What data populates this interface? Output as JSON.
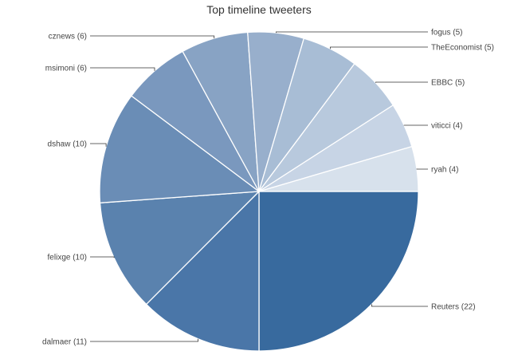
{
  "chart_data": {
    "type": "pie",
    "title": "Top timeline tweeters",
    "slices": [
      {
        "label": "Reuters (22)",
        "name": "Reuters",
        "value": 22,
        "color": "#386a9e"
      },
      {
        "label": "dalmaer (11)",
        "name": "dalmaer",
        "value": 11,
        "color": "#4a76a8"
      },
      {
        "label": "felixge (10)",
        "name": "felixge",
        "value": 10,
        "color": "#5a82ae"
      },
      {
        "label": "dshaw (10)",
        "name": "dshaw",
        "value": 10,
        "color": "#6a8db6"
      },
      {
        "label": "msimoni (6)",
        "name": "msimoni",
        "value": 6,
        "color": "#7a98be"
      },
      {
        "label": "cznews (6)",
        "name": "cznews",
        "value": 6,
        "color": "#88a3c4"
      },
      {
        "label": "fogus (5)",
        "name": "fogus",
        "value": 5,
        "color": "#98afcc"
      },
      {
        "label": "TheEconomist (5)",
        "name": "TheEconomist",
        "value": 5,
        "color": "#a8bdd5"
      },
      {
        "label": "EBBC (5)",
        "name": "EBBC",
        "value": 5,
        "color": "#b8c9dd"
      },
      {
        "label": "viticci (4)",
        "name": "viticci",
        "value": 4,
        "color": "#c7d4e5"
      },
      {
        "label": "ryah (4)",
        "name": "ryah",
        "value": 4,
        "color": "#d7e1ec"
      }
    ],
    "start_angle_deg": 0,
    "direction": "clockwise-from-3-oclock",
    "legend": "none"
  }
}
